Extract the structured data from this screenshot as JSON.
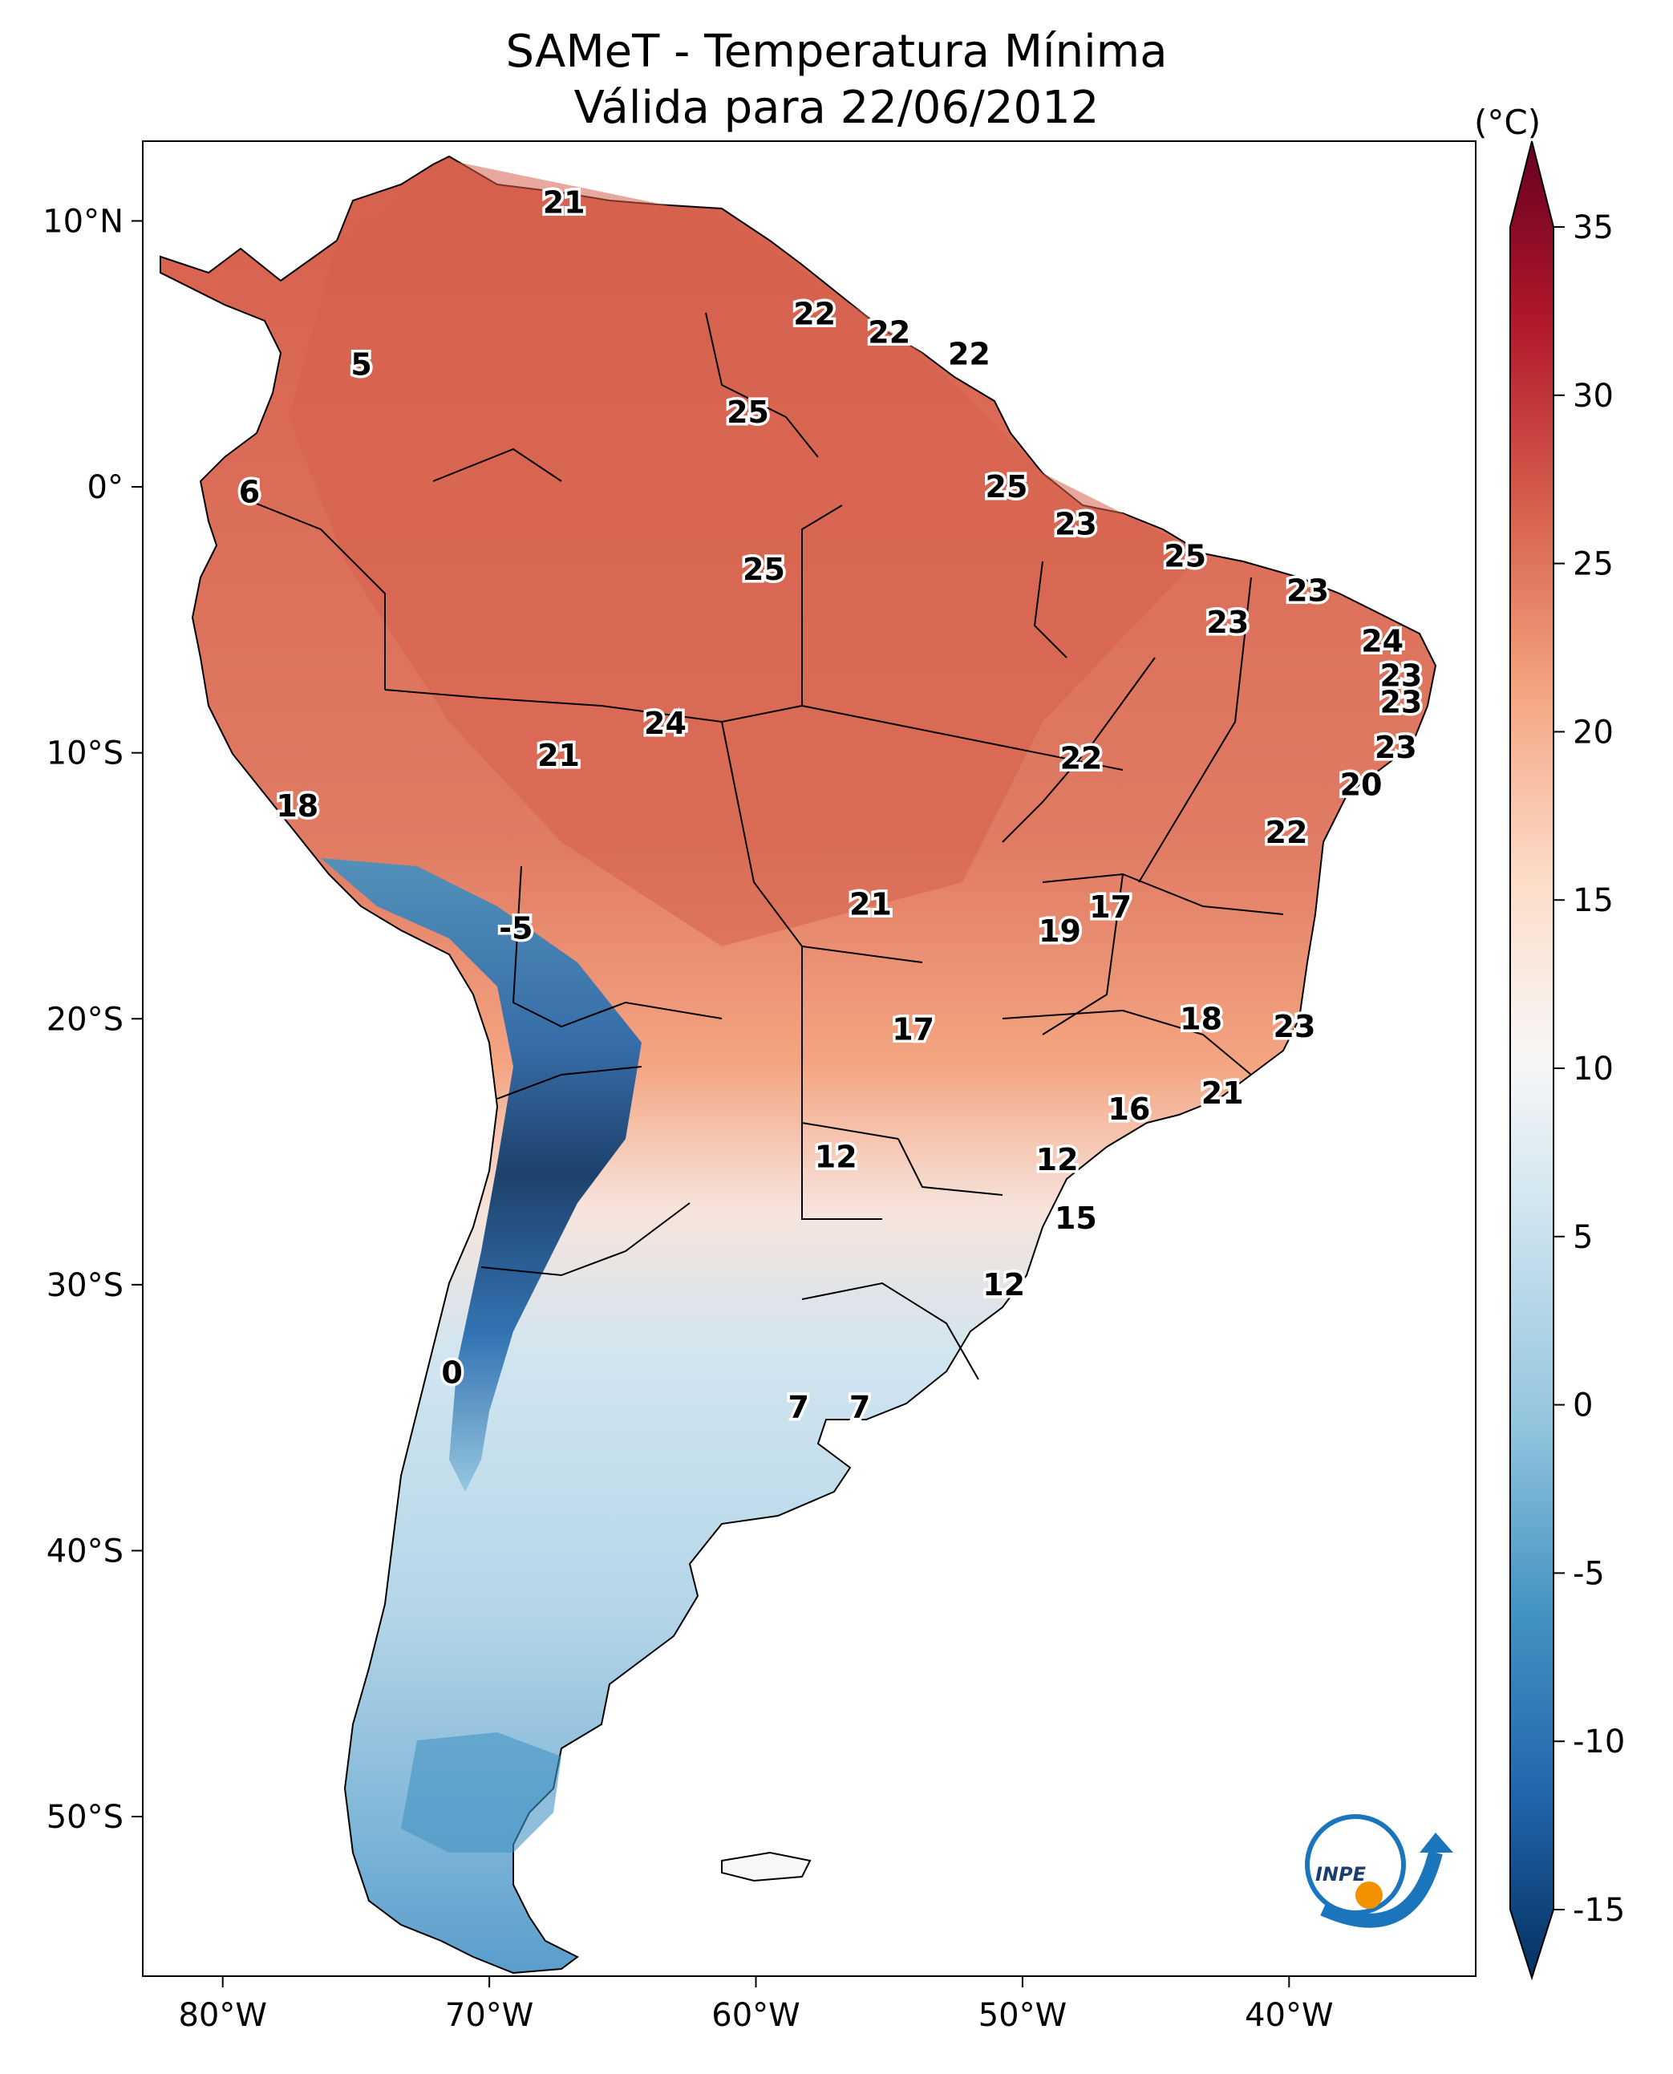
{
  "title": {
    "line1": "SAMeT - Temperatura Mínima",
    "line2": "Válida para 22/06/2012"
  },
  "map": {
    "lon_ticks": [
      {
        "lon": -80,
        "label": "80°W"
      },
      {
        "lon": -70,
        "label": "70°W"
      },
      {
        "lon": -60,
        "label": "60°W"
      },
      {
        "lon": -50,
        "label": "50°W"
      },
      {
        "lon": -40,
        "label": "40°W"
      }
    ],
    "lat_ticks": [
      {
        "lat": 10,
        "label": "10°N"
      },
      {
        "lat": 0,
        "label": "0°"
      },
      {
        "lat": -10,
        "label": "10°S"
      },
      {
        "lat": -20,
        "label": "20°S"
      },
      {
        "lat": -30,
        "label": "30°S"
      },
      {
        "lat": -40,
        "label": "40°S"
      },
      {
        "lat": -50,
        "label": "50°S"
      }
    ],
    "extent": {
      "lon": [
        -83,
        -33
      ],
      "lat": [
        -56,
        13
      ]
    },
    "labels": [
      {
        "text": "21",
        "lon": -67.2,
        "lat": 10.7
      },
      {
        "text": "22",
        "lon": -57.8,
        "lat": 6.5
      },
      {
        "text": "22",
        "lon": -55.0,
        "lat": 5.8
      },
      {
        "text": "22",
        "lon": -52.0,
        "lat": 5.0
      },
      {
        "text": "5",
        "lon": -74.8,
        "lat": 4.6
      },
      {
        "text": "25",
        "lon": -60.3,
        "lat": 2.8
      },
      {
        "text": "6",
        "lon": -79.0,
        "lat": -0.2
      },
      {
        "text": "25",
        "lon": -50.6,
        "lat": 0.0
      },
      {
        "text": "23",
        "lon": -48.0,
        "lat": -1.4
      },
      {
        "text": "25",
        "lon": -59.7,
        "lat": -3.1
      },
      {
        "text": "25",
        "lon": -43.9,
        "lat": -2.6
      },
      {
        "text": "23",
        "lon": -39.3,
        "lat": -3.9
      },
      {
        "text": "23",
        "lon": -42.3,
        "lat": -5.1
      },
      {
        "text": "24",
        "lon": -36.5,
        "lat": -5.8
      },
      {
        "text": "23",
        "lon": -35.8,
        "lat": -7.1
      },
      {
        "text": "23",
        "lon": -35.8,
        "lat": -8.1
      },
      {
        "text": "24",
        "lon": -63.4,
        "lat": -8.9
      },
      {
        "text": "21",
        "lon": -67.4,
        "lat": -10.1
      },
      {
        "text": "23",
        "lon": -36.0,
        "lat": -9.8
      },
      {
        "text": "22",
        "lon": -47.8,
        "lat": -10.2
      },
      {
        "text": "20",
        "lon": -37.3,
        "lat": -11.2
      },
      {
        "text": "18",
        "lon": -77.2,
        "lat": -12.0
      },
      {
        "text": "22",
        "lon": -40.1,
        "lat": -13.0
      },
      {
        "text": "21",
        "lon": -55.7,
        "lat": -15.7
      },
      {
        "text": "17",
        "lon": -46.7,
        "lat": -15.8
      },
      {
        "text": "19",
        "lon": -48.6,
        "lat": -16.7
      },
      {
        "text": "-5",
        "lon": -69.0,
        "lat": -16.6
      },
      {
        "text": "17",
        "lon": -54.1,
        "lat": -20.4
      },
      {
        "text": "18",
        "lon": -43.3,
        "lat": -20.0
      },
      {
        "text": "23",
        "lon": -39.8,
        "lat": -20.3
      },
      {
        "text": "21",
        "lon": -42.5,
        "lat": -22.8
      },
      {
        "text": "16",
        "lon": -46.0,
        "lat": -23.4
      },
      {
        "text": "12",
        "lon": -57.0,
        "lat": -25.2
      },
      {
        "text": "12",
        "lon": -48.7,
        "lat": -25.3
      },
      {
        "text": "15",
        "lon": -48.0,
        "lat": -27.5
      },
      {
        "text": "12",
        "lon": -50.7,
        "lat": -30.0
      },
      {
        "text": "0",
        "lon": -71.4,
        "lat": -33.3
      },
      {
        "text": "7",
        "lon": -58.4,
        "lat": -34.6
      },
      {
        "text": "7",
        "lon": -56.1,
        "lat": -34.6
      }
    ]
  },
  "colorbar": {
    "unit": "(°C)",
    "ticks": [
      35,
      30,
      25,
      20,
      15,
      10,
      5,
      0,
      -5,
      -10,
      -15
    ],
    "tick_labels": [
      "35",
      "30",
      "25",
      "20",
      "15",
      "10",
      "5",
      "0",
      "-5",
      "-10",
      "-15"
    ],
    "range": [
      -15,
      35
    ],
    "colors": {
      "max": "#67001f",
      "hot": "#b2182b",
      "warm": "#d6604d",
      "mild": "#f4a582",
      "pale": "#fddbc7",
      "neutral": "#f7f7f7",
      "cool": "#d1e5f0",
      "cold": "#92c5de",
      "colder": "#4393c3",
      "freezing": "#2166ac",
      "min": "#053061"
    }
  },
  "logo": {
    "text": "INPE"
  }
}
